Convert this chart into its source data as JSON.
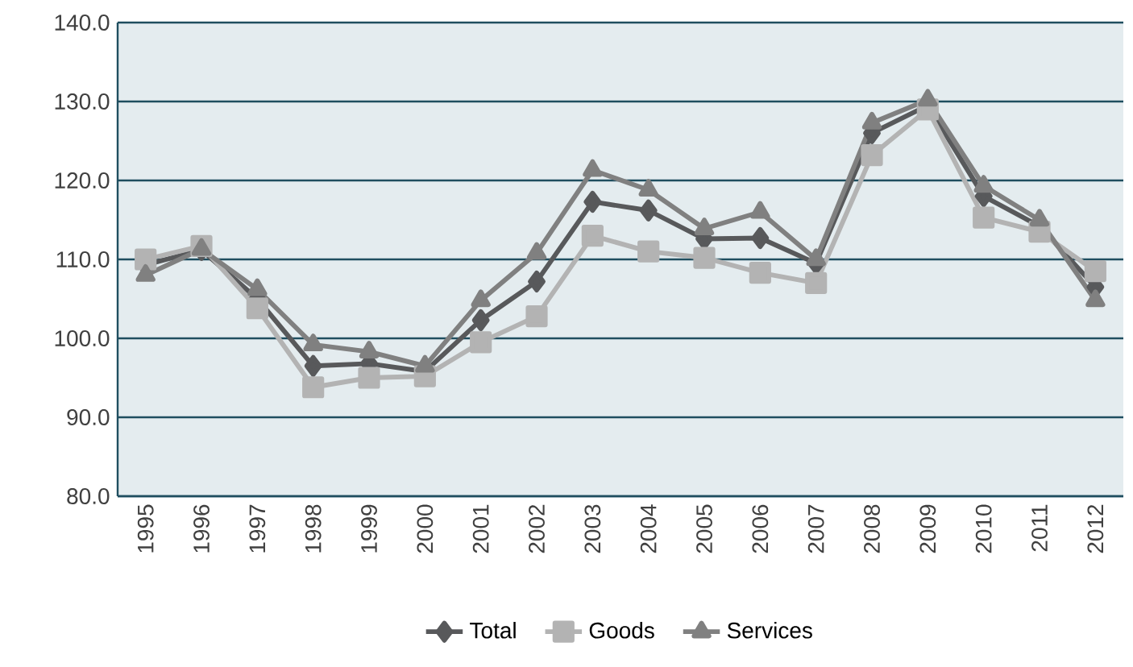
{
  "chart_data": {
    "type": "line",
    "categories": [
      "1995",
      "1996",
      "1997",
      "1998",
      "1999",
      "2000",
      "2001",
      "2002",
      "2003",
      "2004",
      "2005",
      "2006",
      "2007",
      "2008",
      "2009",
      "2010",
      "2011",
      "2012"
    ],
    "series": [
      {
        "name": "Total",
        "color": "#58595b",
        "marker": "diamond",
        "values": [
          109.3,
          111.2,
          105.0,
          96.5,
          96.8,
          95.8,
          102.3,
          107.2,
          117.3,
          116.2,
          112.6,
          112.7,
          109.5,
          126.0,
          129.5,
          118.0,
          114.2,
          106.5
        ]
      },
      {
        "name": "Goods",
        "color": "#b3b3b3",
        "marker": "square",
        "values": [
          110.0,
          111.7,
          103.8,
          93.8,
          95.0,
          95.2,
          99.5,
          102.8,
          113.0,
          111.0,
          110.2,
          108.3,
          107.0,
          123.2,
          129.0,
          115.3,
          113.5,
          108.5
        ]
      },
      {
        "name": "Services",
        "color": "#808080",
        "marker": "triangle",
        "values": [
          108.0,
          111.3,
          106.2,
          99.2,
          98.3,
          96.5,
          104.8,
          110.8,
          121.3,
          118.8,
          113.9,
          116.0,
          110.0,
          127.3,
          130.2,
          119.3,
          115.0,
          104.8
        ]
      }
    ],
    "ylim": [
      80,
      140
    ],
    "yticks": [
      {
        "value": 80,
        "label": "80.0"
      },
      {
        "value": 90,
        "label": "90.0"
      },
      {
        "value": 100,
        "label": "100.0"
      },
      {
        "value": 110,
        "label": "110.0"
      },
      {
        "value": 120,
        "label": "120.0"
      },
      {
        "value": 130,
        "label": "130.0"
      },
      {
        "value": 140,
        "label": "140.0"
      }
    ],
    "grid": "y",
    "legend": "bottom"
  }
}
